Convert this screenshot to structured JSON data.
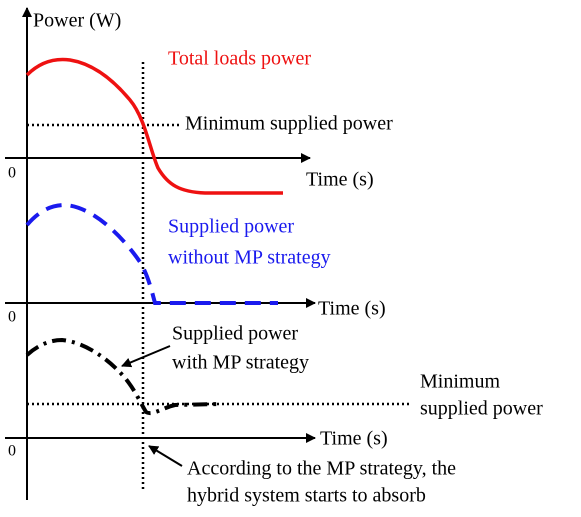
{
  "y_axis_label": "Power (W)",
  "panels": [
    {
      "origin": "0",
      "x_axis_label": "Time (s)",
      "curve_label": [
        "Total loads power"
      ],
      "threshold_label": [
        "Minimum supplied power"
      ]
    },
    {
      "origin": "0",
      "x_axis_label": "Time (s)",
      "curve_label": [
        "Supplied power",
        "without MP strategy"
      ]
    },
    {
      "origin": "0",
      "x_axis_label": "Time (s)",
      "curve_label": [
        "Supplied power",
        "with MP strategy"
      ],
      "threshold_label": [
        "Minimum",
        "supplied power"
      ]
    }
  ],
  "annotation": [
    "According to the MP strategy, the",
    "hybrid system starts to absorb"
  ]
}
